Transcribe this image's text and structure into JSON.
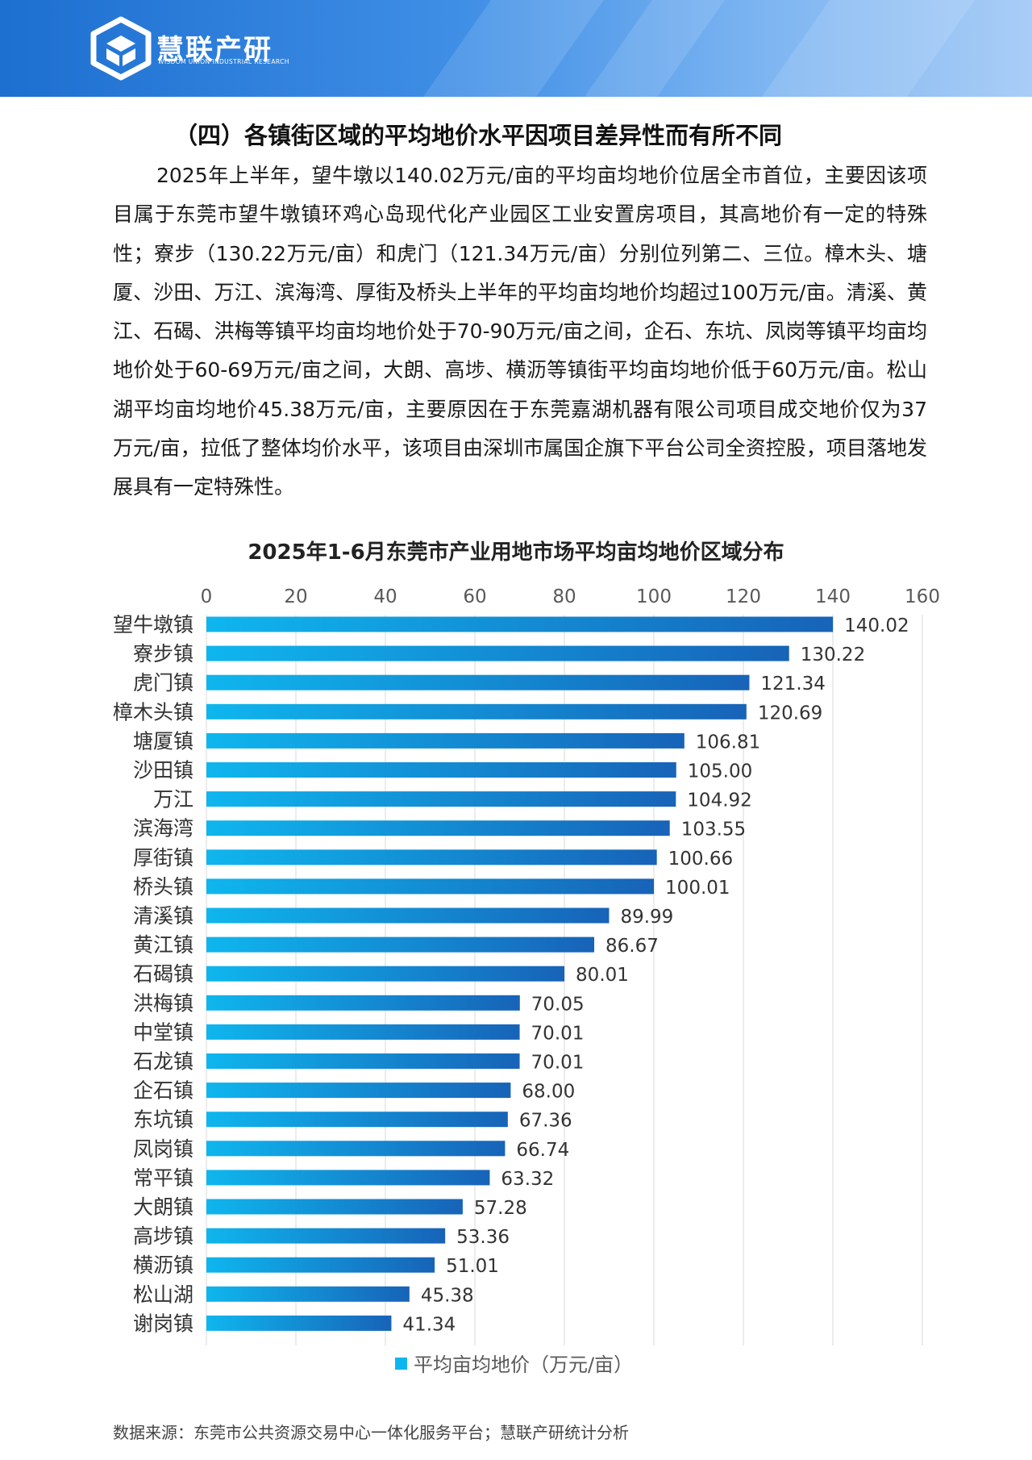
{
  "header": {
    "brand_name": "慧联产研",
    "brand_sub": "WISDOM UNION INDUSTRIAL RESEARCH"
  },
  "section": {
    "title": "（四）各镇街区域的平均地价水平因项目差异性而有所不同",
    "paragraph": "2025年上半年，望牛墩以140.02万元/亩的平均亩均地价位居全市首位，主要因该项目属于东莞市望牛墩镇环鸡心岛现代化产业园区工业安置房项目，其高地价有一定的特殊性；寮步（130.22万元/亩）和虎门（121.34万元/亩）分别位列第二、三位。樟木头、塘厦、沙田、万江、滨海湾、厚街及桥头上半年的平均亩均地价均超过100万元/亩。清溪、黄江、石碣、洪梅等镇平均亩均地价处于70-90万元/亩之间，企石、东坑、凤岗等镇平均亩均地价处于60-69万元/亩之间，大朗、高埗、横沥等镇街平均亩均地价低于60万元/亩。松山湖平均亩均地价45.38万元/亩，主要原因在于东莞嘉湖机器有限公司项目成交地价仅为37万元/亩，拉低了整体均价水平，该项目由深圳市属国企旗下平台公司全资控股，项目落地发展具有一定特殊性。"
  },
  "chart_data": {
    "type": "bar",
    "orientation": "horizontal",
    "title": "2025年1-6月东莞市产业用地市场平均亩均地价区域分布",
    "categories": [
      "望牛墩镇",
      "寮步镇",
      "虎门镇",
      "樟木头镇",
      "塘厦镇",
      "沙田镇",
      "万江",
      "滨海湾",
      "厚街镇",
      "桥头镇",
      "清溪镇",
      "黄江镇",
      "石碣镇",
      "洪梅镇",
      "中堂镇",
      "石龙镇",
      "企石镇",
      "东坑镇",
      "凤岗镇",
      "常平镇",
      "大朗镇",
      "高埗镇",
      "横沥镇",
      "松山湖",
      "谢岗镇"
    ],
    "values": [
      140.02,
      130.22,
      121.34,
      120.69,
      106.81,
      105.0,
      104.92,
      103.55,
      100.66,
      100.01,
      89.99,
      86.67,
      80.01,
      70.05,
      70.01,
      70.01,
      68.0,
      67.36,
      66.74,
      63.32,
      57.28,
      53.36,
      51.01,
      45.38,
      41.34
    ],
    "value_labels": [
      "140.02",
      "130.22",
      "121.34",
      "120.69",
      "106.81",
      "105.00",
      "104.92",
      "103.55",
      "100.66",
      "100.01",
      "89.99",
      "86.67",
      "80.01",
      "70.05",
      "70.01",
      "70.01",
      "68.00",
      "67.36",
      "66.74",
      "63.32",
      "57.28",
      "53.36",
      "51.01",
      "45.38",
      "41.34"
    ],
    "xlim": [
      0,
      160
    ],
    "ticks": [
      "0",
      "20",
      "40",
      "60",
      "80",
      "100",
      "120",
      "140",
      "160"
    ],
    "tick_values": [
      0,
      20,
      40,
      60,
      80,
      100,
      120,
      140,
      160
    ],
    "legend": "平均亩均地价（万元/亩）",
    "legend_position": "bottom",
    "grid": true,
    "bar_color_start": "#0fb6ee",
    "bar_color_end": "#1763b8",
    "axis_position": "top"
  },
  "footer": {
    "source": "数据来源：东莞市公共资源交易中心一体化服务平台；慧联产研统计分析"
  }
}
